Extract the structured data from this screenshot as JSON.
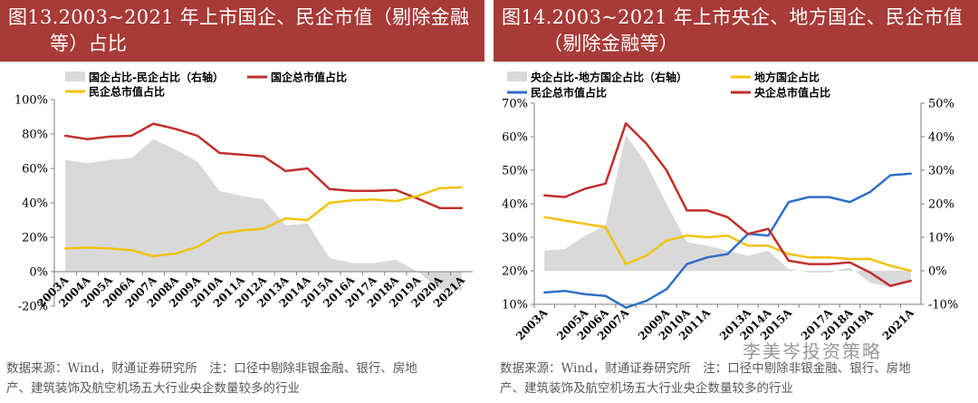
{
  "chart_data": [
    {
      "type": "line",
      "title": "图13.2003~2021 年上市国企、民企市值（剔除金融等）占比",
      "title_line1": "图13.2003~2021 年上市国企、民企市值（剔除金融",
      "title_line2": "等）占比",
      "legend": [
        "国企占比-民企占比（右轴）",
        "国企总市值占比",
        "民企总市值占比"
      ],
      "categories": [
        "2003A",
        "2004A",
        "2005A",
        "2006A",
        "2007A",
        "2008A",
        "2009A",
        "2010A",
        "2011A",
        "2012A",
        "2013A",
        "2014A",
        "2015A",
        "2016A",
        "2017A",
        "2018A",
        "2019A",
        "2020A",
        "2021A"
      ],
      "y_ticks": [
        "-20%",
        "0%",
        "20%",
        "40%",
        "60%",
        "80%",
        "100%"
      ],
      "ylim": [
        -20,
        100
      ],
      "series": [
        {
          "name": "国企占比-民企占比（右轴）",
          "kind": "area",
          "color": "#d9d9d9",
          "values": [
            65,
            63,
            65,
            66,
            77,
            71,
            64,
            47,
            44,
            42,
            27,
            28,
            8,
            5,
            5,
            7,
            0,
            -10,
            -11
          ]
        },
        {
          "name": "国企总市值占比",
          "kind": "line",
          "color": "#c0302c",
          "values": [
            79,
            77,
            78.5,
            79,
            86,
            83,
            79,
            69,
            68,
            67,
            58.5,
            60,
            48,
            47,
            47,
            47.5,
            42.5,
            37,
            37
          ]
        },
        {
          "name": "民企总市值占比",
          "kind": "line",
          "color": "#f2c20c",
          "values": [
            13.5,
            14,
            13.5,
            12.5,
            9,
            10.5,
            14.5,
            22,
            24,
            25,
            31,
            30,
            40,
            41.5,
            42,
            41,
            44,
            48.5,
            49
          ]
        }
      ]
    },
    {
      "type": "line",
      "title": "图14.2003~2021 年上市央企、地方国企、民企市值（剔除金融等）",
      "title_line1": "图14.2003~2021 年上市央企、地方国企、民企市值",
      "title_line2": "（剔除金融等）",
      "legend": [
        "央企占比-地方国企占比（右轴）",
        "地方国企占比",
        "民企总市值占比",
        "央企总市值占比"
      ],
      "categories": [
        "2003A",
        "2004A",
        "2005A",
        "2006A",
        "2007A",
        "2008A",
        "2009A",
        "2010A",
        "2011A",
        "2012A",
        "2013A",
        "2014A",
        "2015A",
        "2016A",
        "2017A",
        "2018A",
        "2019A",
        "2020A",
        "2021A"
      ],
      "x_tick_labels_shown": [
        "2003A",
        "2005A",
        "2006A",
        "2007A",
        "2009A",
        "2010A",
        "2011A",
        "2013A",
        "2014A",
        "2015A",
        "2017A",
        "2018A",
        "2019A",
        "2021A"
      ],
      "y_ticks_left": [
        "10%",
        "20%",
        "30%",
        "40%",
        "50%",
        "60%",
        "70%"
      ],
      "y_ticks_right": [
        "-10%",
        "0%",
        "10%",
        "20%",
        "30%",
        "40%",
        "50%"
      ],
      "ylim_left": [
        10,
        70
      ],
      "ylim_right": [
        -10,
        50
      ],
      "series": [
        {
          "name": "央企占比-地方国企占比（右轴）",
          "kind": "area",
          "axis": "right",
          "color": "#d9d9d9",
          "values": [
            6,
            6.5,
            10.5,
            13.5,
            40.5,
            32,
            20,
            8.5,
            7.5,
            6,
            4.5,
            6,
            0.5,
            -0.5,
            -0.5,
            1,
            -3.5,
            -5,
            -3
          ]
        },
        {
          "name": "地方国企占比",
          "kind": "line",
          "axis": "left",
          "color": "#f2c20c",
          "values": [
            36,
            35,
            34,
            33,
            22,
            24.5,
            29,
            30.5,
            30,
            30.5,
            27.5,
            27.5,
            25,
            24,
            24,
            23.5,
            23.5,
            21.5,
            20
          ]
        },
        {
          "name": "民企总市值占比",
          "kind": "line",
          "axis": "left",
          "color": "#2e6fc7",
          "values": [
            13.5,
            14,
            13,
            12.5,
            9,
            11,
            14.5,
            22,
            24,
            25,
            31,
            30.5,
            40.5,
            42,
            42,
            40.5,
            43.5,
            48.5,
            49
          ]
        },
        {
          "name": "央企总市值占比",
          "kind": "line",
          "axis": "left",
          "color": "#c0302c",
          "values": [
            42.5,
            42,
            44.5,
            46,
            64,
            58,
            50,
            38,
            38,
            36,
            31,
            32.5,
            23,
            22,
            22,
            22.5,
            19.5,
            15.5,
            17
          ]
        }
      ]
    }
  ],
  "notes": {
    "left_line1": "数据来源：Wind，财通证券研究所　注：口径中剔除非银金融、银行、房地",
    "left_line2": "产、建筑装饰及航空机场五大行业央企数量较多的行业",
    "right_line1": "数据来源：Wind，财通证券研究所　注：口径中剔除非银金融、银行、房地",
    "right_line2": "产、建筑装饰及航空机场五大行业央企数量较多的行业"
  },
  "watermark": "李美岑投资策略"
}
